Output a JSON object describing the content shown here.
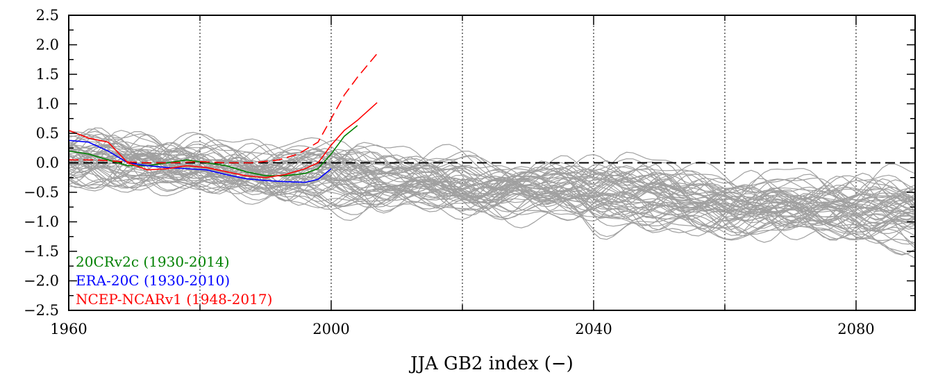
{
  "chart_data": {
    "type": "line",
    "title": "",
    "xlabel": "JJA GB2 index (−)",
    "ylabel": "",
    "xlim": [
      1960,
      2089
    ],
    "ylim": [
      -2.5,
      2.5
    ],
    "x_tick_labels": [
      "1960",
      "2000",
      "2040",
      "2080"
    ],
    "y_tick_labels": [
      "2.5",
      "2.0",
      "1.5",
      "1.0",
      "0.5",
      "0.0",
      "−0.5",
      "−1.0",
      "−1.5",
      "−2.0",
      "−2.5"
    ],
    "grid": "vertical dotted every 20 years",
    "zero_line": "dashed black at 0",
    "legend_position": "bottom-left",
    "legend": [
      {
        "label": "20CRv2c (1930-2014)",
        "color": "#008000"
      },
      {
        "label": "ERA-20C (1930-2010)",
        "color": "#0000ff"
      },
      {
        "label": "NCEP-NCARv1 (1948-2017)",
        "color": "#ff0000"
      }
    ],
    "ensemble": {
      "color": "#a0a0a0",
      "members": 60,
      "x_range": [
        1960,
        2089
      ],
      "mean_start": 0.05,
      "mean_end": -0.9,
      "spread_start": 0.18,
      "spread_end": 0.35
    },
    "series": [
      {
        "color": "#008000",
        "x": [
          1960,
          1963,
          1966,
          1969,
          1972,
          1975,
          1978,
          1981,
          1984,
          1987,
          1990,
          1993,
          1996,
          1998,
          2000,
          2002,
          2004
        ],
        "values": [
          0.2,
          0.15,
          0.05,
          -0.05,
          -0.05,
          0.0,
          0.05,
          0.0,
          -0.05,
          -0.15,
          -0.22,
          -0.22,
          -0.18,
          -0.1,
          0.15,
          0.45,
          0.63
        ]
      },
      {
        "color": "#0000ff",
        "x": [
          1960,
          1963,
          1966,
          1969,
          1972,
          1975,
          1978,
          1981,
          1984,
          1987,
          1990,
          1993,
          1996,
          1998,
          2000
        ],
        "values": [
          0.38,
          0.35,
          0.2,
          0.0,
          -0.05,
          -0.08,
          -0.1,
          -0.12,
          -0.2,
          -0.27,
          -0.3,
          -0.32,
          -0.33,
          -0.28,
          -0.1
        ]
      },
      {
        "color": "#ff0000",
        "x": [
          1960,
          1963,
          1966,
          1969,
          1972,
          1975,
          1978,
          1981,
          1984,
          1987,
          1990,
          1993,
          1996,
          1998,
          2000,
          2002,
          2004,
          2007
        ],
        "values": [
          0.55,
          0.42,
          0.35,
          0.0,
          -0.12,
          -0.1,
          -0.05,
          -0.08,
          -0.15,
          -0.22,
          -0.25,
          -0.2,
          -0.1,
          0.0,
          0.3,
          0.55,
          0.72,
          1.02
        ]
      },
      {
        "color": "#ff0000",
        "style": "dashed",
        "x": [
          1960,
          1964,
          1968,
          1972,
          1976,
          1980,
          1984,
          1988,
          1992,
          1995,
          1998,
          2000,
          2002,
          2004,
          2007
        ],
        "values": [
          0.05,
          0.05,
          0.02,
          0.0,
          0.0,
          0.02,
          0.0,
          0.0,
          0.05,
          0.15,
          0.35,
          0.75,
          1.15,
          1.45,
          1.85
        ]
      }
    ]
  }
}
